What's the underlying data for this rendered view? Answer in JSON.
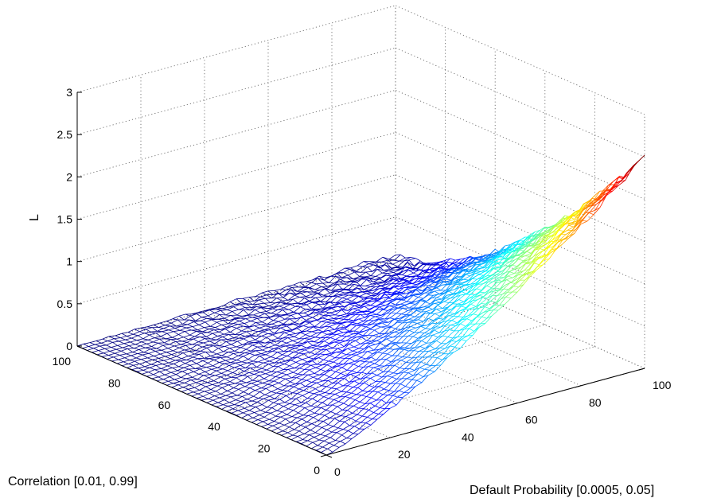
{
  "chart_data": {
    "type": "surface",
    "style": "mesh-wireframe",
    "colormap": "jet",
    "xlabel": "Correlation [0.01, 0.99]",
    "ylabel": "Default Probability [0.0005, 0.05]",
    "zlabel": "L",
    "xlim": [
      0,
      100
    ],
    "ylim": [
      0,
      100
    ],
    "zlim": [
      0,
      3
    ],
    "xticks": [
      "0",
      "20",
      "40",
      "60",
      "80",
      "100"
    ],
    "yticks": [
      "0",
      "20",
      "40",
      "60",
      "80",
      "100"
    ],
    "zticks": [
      "0",
      "0.5",
      "1",
      "1.5",
      "2",
      "2.5",
      "3"
    ],
    "grid": true,
    "grid_points": 100,
    "surface_summary": {
      "z_at_x0_y0": 0.0,
      "z_at_x100_y0": 0.0,
      "z_at_x0_y100": 2.5,
      "z_at_x100_y100": 0.05,
      "z_at_x50_y100": 1.1,
      "z_at_x100_y50": 0.02,
      "description_values": "z rises toward low correlation and high default probability"
    }
  }
}
